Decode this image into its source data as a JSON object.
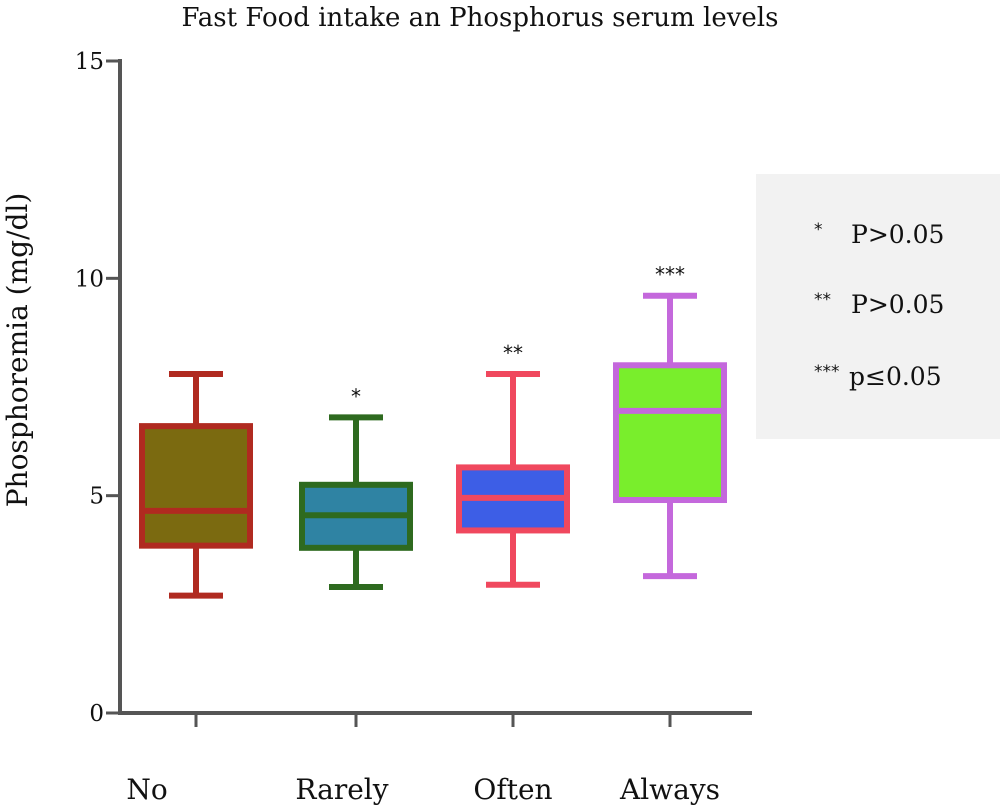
{
  "chart_data": {
    "type": "boxplot",
    "title": "Fast Food intake an Phosphorus serum levels",
    "xlabel": "",
    "ylabel": "Phosphoremia (mg/dl)",
    "ylim": [
      0,
      15
    ],
    "yticks": [
      0,
      5,
      10,
      15
    ],
    "grid": false,
    "categories": [
      "No",
      "Rarely",
      "Often",
      "Always"
    ],
    "boxes": [
      {
        "category": "No",
        "min": 2.7,
        "q1": 3.85,
        "median": 4.65,
        "q3": 6.6,
        "max": 7.8,
        "fill": "#7b6a10",
        "stroke": "#b02a20",
        "significance": ""
      },
      {
        "category": "Rarely",
        "min": 2.9,
        "q1": 3.8,
        "median": 4.55,
        "q3": 5.25,
        "max": 6.8,
        "fill": "#2f83a3",
        "stroke": "#2e6a1f",
        "significance": "*"
      },
      {
        "category": "Often",
        "min": 2.95,
        "q1": 4.2,
        "median": 4.95,
        "q3": 5.65,
        "max": 7.8,
        "fill": "#3d5ee6",
        "stroke": "#f0485e",
        "significance": "**"
      },
      {
        "category": "Always",
        "min": 3.15,
        "q1": 4.9,
        "median": 6.95,
        "q3": 8.0,
        "max": 9.6,
        "fill": "#79ee2c",
        "stroke": "#c468dc",
        "significance": "***"
      }
    ],
    "legend": {
      "position": "right",
      "entries": [
        {
          "marker": "*",
          "text": "P>0.05"
        },
        {
          "marker": "**",
          "text": "P>0.05"
        },
        {
          "marker": "***",
          "text": "p≤0.05"
        }
      ]
    }
  }
}
